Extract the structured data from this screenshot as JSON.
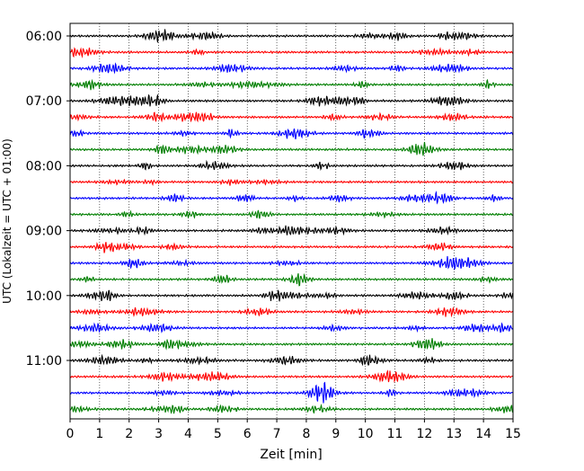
{
  "chart_data": {
    "type": "line",
    "title": "",
    "xlabel": "Zeit  [min]",
    "ylabel": "UTC (Lokalzeit = UTC + 01:00)",
    "xlim": [
      0,
      15
    ],
    "x_ticks": [
      "0",
      "1",
      "2",
      "3",
      "4",
      "5",
      "6",
      "7",
      "8",
      "9",
      "10",
      "11",
      "12",
      "13",
      "14",
      "15"
    ],
    "y_tick_labels": [
      "06:00",
      "07:00",
      "08:00",
      "09:00",
      "10:00",
      "11:00"
    ],
    "grid_x": true,
    "trace_interval_minutes": 15,
    "start_time": "06:00",
    "trace_count": 24,
    "colors": [
      "#000000",
      "#ff0000",
      "#0000ff",
      "#007f00"
    ],
    "legend": "none"
  }
}
